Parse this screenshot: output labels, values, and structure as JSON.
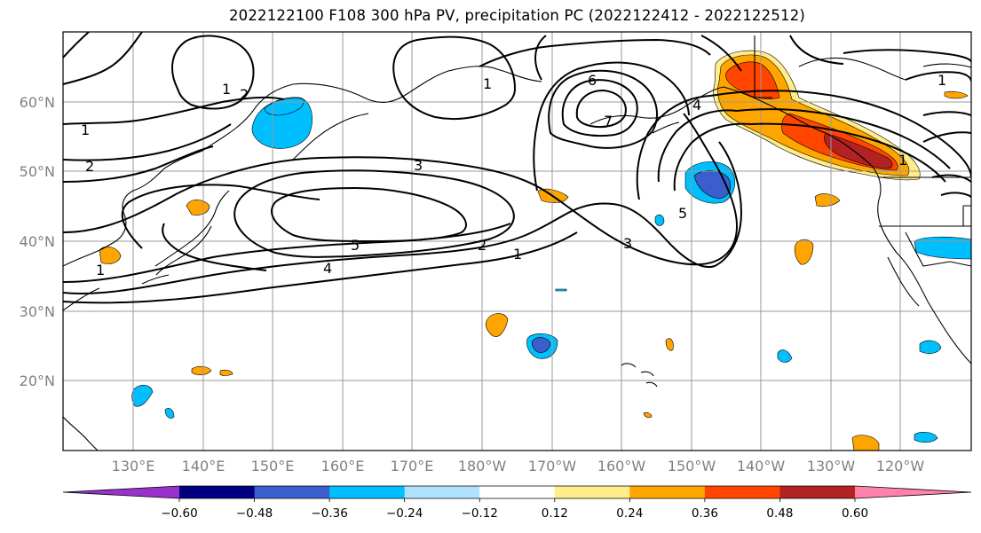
{
  "title": "2022122100 F108 300 hPa PV, precipitation PC (2022122412 - 2022122512)",
  "map": {
    "lon_labels": [
      "130°E",
      "140°E",
      "150°E",
      "160°E",
      "170°E",
      "180°W",
      "170°W",
      "160°W",
      "150°W",
      "140°W",
      "130°W",
      "120°W"
    ],
    "lat_labels": [
      "60°N",
      "50°N",
      "40°N",
      "30°N",
      "20°N"
    ],
    "contour_labels": [
      "1",
      "2",
      "2",
      "3",
      "4",
      "5",
      "7",
      "1",
      "2",
      "3",
      "5",
      "1",
      "1",
      "6",
      "4",
      "1",
      "1",
      "1"
    ]
  },
  "colorbar": {
    "ticks": [
      "−0.60",
      "−0.48",
      "−0.36",
      "−0.24",
      "−0.12",
      "0.12",
      "0.24",
      "0.36",
      "0.48",
      "0.60"
    ],
    "colors": [
      "#9932cc",
      "#000080",
      "#3a5fcd",
      "#00bfff",
      "#b0e2ff",
      "#ffffff",
      "#ffec8b",
      "#ffa500",
      "#ff4500",
      "#b22222",
      "#ff82ab"
    ]
  }
}
